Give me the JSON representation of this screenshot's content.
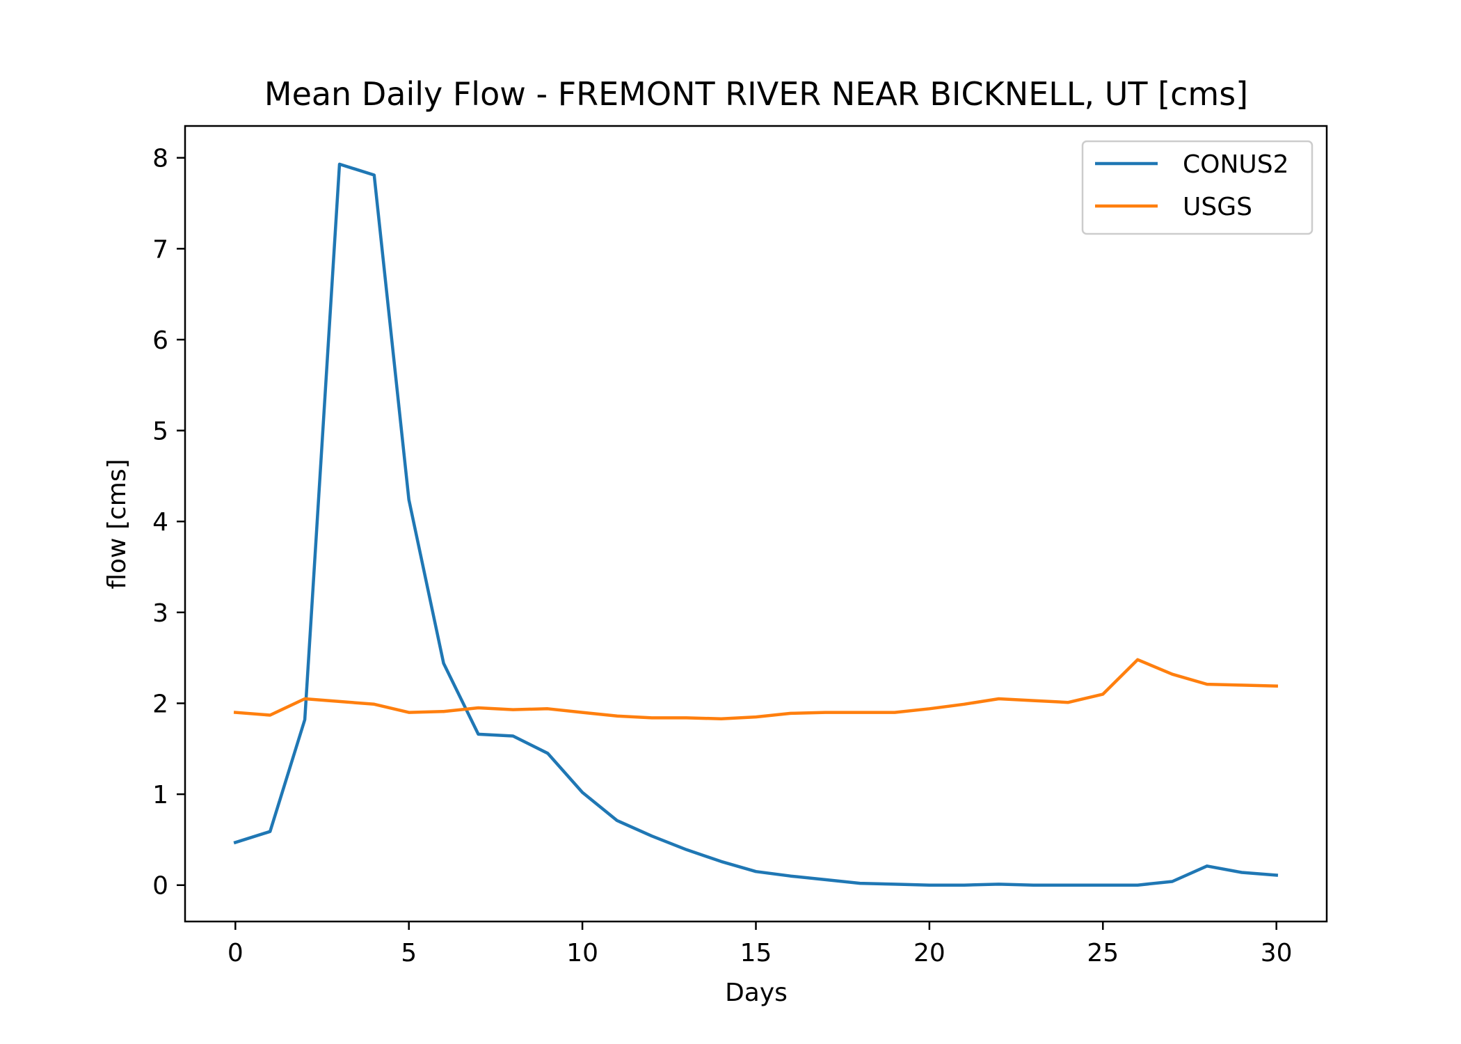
{
  "chart_data": {
    "type": "line",
    "title": "Mean Daily Flow - FREMONT RIVER NEAR BICKNELL, UT [cms]",
    "xlabel": "Days",
    "ylabel": "flow [cms]",
    "xlim": [
      -1.45,
      31.45
    ],
    "ylim": [
      -0.4,
      8.35
    ],
    "xticks": [
      0,
      5,
      10,
      15,
      20,
      25,
      30
    ],
    "yticks": [
      0,
      1,
      2,
      3,
      4,
      5,
      6,
      7,
      8
    ],
    "grid": false,
    "legend_position": "top-right",
    "x": [
      0,
      1,
      2,
      3,
      4,
      5,
      6,
      7,
      8,
      9,
      10,
      11,
      12,
      13,
      14,
      15,
      16,
      17,
      18,
      19,
      20,
      21,
      22,
      23,
      24,
      25,
      26,
      27,
      28,
      29,
      30
    ],
    "series": [
      {
        "name": "CONUS2",
        "color": "#1f77b4",
        "values": [
          0.47,
          0.59,
          1.82,
          7.93,
          7.81,
          4.24,
          2.44,
          1.66,
          1.64,
          1.45,
          1.02,
          0.71,
          0.54,
          0.39,
          0.26,
          0.15,
          0.1,
          0.06,
          0.02,
          0.01,
          0.0,
          0.0,
          0.01,
          0.0,
          0.0,
          0.0,
          0.0,
          0.04,
          0.21,
          0.14,
          0.11
        ]
      },
      {
        "name": "USGS",
        "color": "#ff7f0e",
        "values": [
          1.9,
          1.87,
          2.05,
          2.02,
          1.99,
          1.9,
          1.91,
          1.95,
          1.93,
          1.94,
          1.9,
          1.86,
          1.84,
          1.84,
          1.83,
          1.85,
          1.89,
          1.9,
          1.9,
          1.9,
          1.94,
          1.99,
          2.05,
          2.03,
          2.01,
          2.1,
          2.48,
          2.32,
          2.21,
          2.2,
          2.19
        ]
      }
    ]
  }
}
